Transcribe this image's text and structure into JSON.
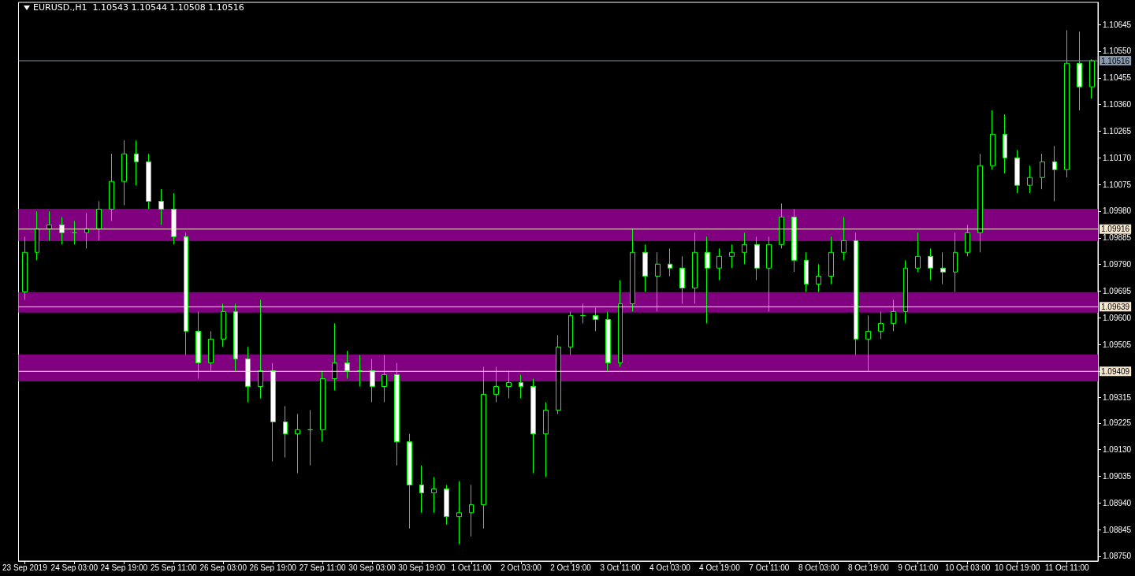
{
  "chart_data": {
    "type": "candlestick",
    "title": "EURUSD.,H1  1.10543 1.10544 1.10508 1.10516",
    "categories": [
      "23 Sep 2019",
      null,
      null,
      null,
      "24 Sep 03:00",
      null,
      null,
      null,
      "24 Sep 19:00",
      null,
      null,
      null,
      "25 Sep 11:00",
      null,
      null,
      null,
      "26 Sep 03:00",
      null,
      null,
      null,
      "26 Sep 19:00",
      null,
      null,
      null,
      "27 Sep 11:00",
      null,
      null,
      null,
      "30 Sep 03:00",
      null,
      null,
      null,
      "30 Sep 19:00",
      null,
      null,
      null,
      "1 Oct 11:00",
      null,
      null,
      null,
      "2 Oct 03:00",
      null,
      null,
      null,
      "2 Oct 19:00",
      null,
      null,
      null,
      "3 Oct 11:00",
      null,
      null,
      null,
      "4 Oct 03:00",
      null,
      null,
      null,
      "4 Oct 19:00",
      null,
      null,
      null,
      "7 Oct 11:00",
      null,
      null,
      null,
      "8 Oct 03:00",
      null,
      null,
      null,
      "8 Oct 19:00",
      null,
      null,
      null,
      "9 Oct 11:00",
      null,
      null,
      null,
      "10 Oct 03:00",
      null,
      null,
      null,
      "10 Oct 19:00",
      null,
      null,
      null,
      "11 Oct 11:00",
      null,
      null
    ],
    "bands": [
      {
        "axis": "y",
        "from": 1.09373,
        "to": 1.09469,
        "color": "#800080"
      },
      {
        "axis": "y",
        "from": 1.09618,
        "to": 1.09691,
        "color": "#800080"
      },
      {
        "axis": "y",
        "from": 1.09873,
        "to": 1.09988,
        "color": "#800080"
      }
    ],
    "series": [
      {
        "color": "#00ff00",
        "ohlc": [
          [
            1.09692,
            1.09889,
            1.09664,
            1.09833
          ],
          [
            1.09833,
            1.09979,
            1.09805,
            1.09917
          ],
          [
            1.09917,
            1.09979,
            1.09875,
            1.09931
          ],
          [
            1.09931,
            1.09959,
            1.09861,
            1.09903
          ],
          [
            1.09903,
            1.09945,
            1.09861,
            1.09903
          ],
          [
            1.09903,
            1.09973,
            1.09847,
            1.09917
          ],
          [
            1.09917,
            1.10015,
            1.09875,
            1.09987
          ],
          [
            1.09987,
            1.10184,
            1.09945,
            1.10086
          ],
          [
            1.10086,
            1.10232,
            1.10001,
            1.10184
          ],
          [
            1.10184,
            1.10232,
            1.10072,
            1.10156
          ],
          [
            1.10156,
            1.10184,
            1.09987,
            1.10015
          ],
          [
            1.10015,
            1.10058,
            1.09931,
            1.09987
          ],
          [
            1.09987,
            1.10044,
            1.09861,
            1.09889
          ],
          [
            1.09889,
            1.09903,
            1.09467,
            1.09552
          ],
          [
            1.09552,
            1.09622,
            1.09383,
            1.09439
          ],
          [
            1.09439,
            1.09552,
            1.09411,
            1.09524
          ],
          [
            1.09524,
            1.0965,
            1.09496,
            1.09622
          ],
          [
            1.09622,
            1.0965,
            1.09411,
            1.09453
          ],
          [
            1.09453,
            1.09496,
            1.09299,
            1.09355
          ],
          [
            1.09355,
            1.09664,
            1.09313,
            1.09411
          ],
          [
            1.09411,
            1.09439,
            1.09088,
            1.09229
          ],
          [
            1.09229,
            1.09285,
            1.09102,
            1.09186
          ],
          [
            1.09186,
            1.09257,
            1.09046,
            1.09201
          ],
          [
            1.09201,
            1.09271,
            1.09074,
            1.09201
          ],
          [
            1.09201,
            1.09411,
            1.09158,
            1.09383
          ],
          [
            1.09383,
            1.0958,
            1.09341,
            1.09439
          ],
          [
            1.09439,
            1.09482,
            1.09383,
            1.09411
          ],
          [
            1.09411,
            1.09467,
            1.09355,
            1.09411
          ],
          [
            1.09411,
            1.09453,
            1.09299,
            1.09355
          ],
          [
            1.09355,
            1.09467,
            1.09299,
            1.09397
          ],
          [
            1.09397,
            1.09439,
            1.09074,
            1.09158
          ],
          [
            1.09158,
            1.09186,
            1.08849,
            1.09004
          ],
          [
            1.09004,
            1.09074,
            1.08905,
            1.08976
          ],
          [
            1.08976,
            1.09032,
            1.08905,
            1.0899
          ],
          [
            1.0899,
            1.09004,
            1.08863,
            1.08891
          ],
          [
            1.08891,
            1.09018,
            1.08793,
            1.08905
          ],
          [
            1.08905,
            1.09004,
            1.08821,
            1.08934
          ],
          [
            1.08934,
            1.09425,
            1.08849,
            1.09327
          ],
          [
            1.09327,
            1.09425,
            1.09299,
            1.09355
          ],
          [
            1.09355,
            1.09411,
            1.09313,
            1.09369
          ],
          [
            1.09369,
            1.09397,
            1.09313,
            1.09355
          ],
          [
            1.09355,
            1.09383,
            1.09046,
            1.09186
          ],
          [
            1.09186,
            1.09299,
            1.09032,
            1.09271
          ],
          [
            1.09271,
            1.09538,
            1.09257,
            1.09496
          ],
          [
            1.09496,
            1.09622,
            1.09467,
            1.09608
          ],
          [
            1.09608,
            1.0965,
            1.0958,
            1.09608
          ],
          [
            1.09608,
            1.09636,
            1.09552,
            1.09594
          ],
          [
            1.09594,
            1.09622,
            1.09411,
            1.09439
          ],
          [
            1.09439,
            1.09734,
            1.09425,
            1.0965
          ],
          [
            1.0965,
            1.09917,
            1.09622,
            1.09833
          ],
          [
            1.09833,
            1.09861,
            1.09692,
            1.09748
          ],
          [
            1.09748,
            1.09833,
            1.09622,
            1.09791
          ],
          [
            1.09791,
            1.09847,
            1.09748,
            1.09777
          ],
          [
            1.09777,
            1.09819,
            1.0965,
            1.09706
          ],
          [
            1.09706,
            1.09903,
            1.0965,
            1.09833
          ],
          [
            1.09833,
            1.09889,
            1.0958,
            1.09777
          ],
          [
            1.09777,
            1.09847,
            1.09734,
            1.09819
          ],
          [
            1.09819,
            1.09861,
            1.09777,
            1.09833
          ],
          [
            1.09833,
            1.09903,
            1.09791,
            1.09861
          ],
          [
            1.09861,
            1.09889,
            1.09734,
            1.09777
          ],
          [
            1.09777,
            1.09889,
            1.09622,
            1.09861
          ],
          [
            1.09861,
            1.10007,
            1.09847,
            1.09959
          ],
          [
            1.09959,
            1.09987,
            1.09763,
            1.09805
          ],
          [
            1.09805,
            1.09833,
            1.09692,
            1.0972
          ],
          [
            1.0972,
            1.09791,
            1.09692,
            1.09748
          ],
          [
            1.09748,
            1.09889,
            1.0972,
            1.09833
          ],
          [
            1.09833,
            1.09959,
            1.09805,
            1.09875
          ],
          [
            1.09875,
            1.09903,
            1.09467,
            1.09524
          ],
          [
            1.09524,
            1.09608,
            1.09411,
            1.09552
          ],
          [
            1.09552,
            1.09622,
            1.09524,
            1.0958
          ],
          [
            1.0958,
            1.09664,
            1.09552,
            1.09622
          ],
          [
            1.09622,
            1.09805,
            1.0958,
            1.09777
          ],
          [
            1.09777,
            1.09903,
            1.09763,
            1.09819
          ],
          [
            1.09819,
            1.09847,
            1.09734,
            1.09777
          ],
          [
            1.09777,
            1.09833,
            1.0972,
            1.09763
          ],
          [
            1.09763,
            1.09903,
            1.09692,
            1.09833
          ],
          [
            1.09833,
            1.09931,
            1.09819,
            1.09903
          ],
          [
            1.09903,
            1.10184,
            1.09833,
            1.10142
          ],
          [
            1.10142,
            1.10339,
            1.10128,
            1.10254
          ],
          [
            1.10254,
            1.10325,
            1.10114,
            1.1017
          ],
          [
            1.1017,
            1.10198,
            1.10044,
            1.10072
          ],
          [
            1.10072,
            1.10142,
            1.10044,
            1.101
          ],
          [
            1.101,
            1.10184,
            1.10058,
            1.10156
          ],
          [
            1.10156,
            1.10212,
            1.10015,
            1.10128
          ],
          [
            1.10128,
            1.10625,
            1.101,
            1.10507
          ],
          [
            1.10507,
            1.1062,
            1.10339,
            1.10423
          ],
          [
            1.10423,
            1.10521,
            1.10381,
            1.10516
          ]
        ]
      }
    ],
    "ylim": [
      1.08733,
      1.10724
    ],
    "yticks": [
      {
        "value": 1.0875,
        "label": "1.08750"
      },
      1.08845,
      {
        "value": 1.0894,
        "label": "1.08940"
      },
      1.09035,
      {
        "value": 1.0913,
        "label": "1.09130"
      },
      1.09225,
      1.09315,
      {
        "value": 1.0941,
        "label": null
      },
      1.09505,
      {
        "value": 1.096,
        "label": "1.09600"
      },
      1.09695,
      {
        "value": 1.0979,
        "label": "1.09790"
      },
      1.09885,
      {
        "value": 1.0998,
        "label": "1.09980"
      },
      1.10075,
      {
        "value": 1.1017,
        "label": "1.10170"
      },
      1.10265,
      {
        "value": 1.1036,
        "label": "1.10360"
      },
      1.10455,
      {
        "value": 1.1055,
        "label": "1.10550"
      },
      1.10645
    ],
    "ref_lines": [
      {
        "axis": "y",
        "value": 1.10516,
        "label": "1.10516",
        "color": "#8a9bb0"
      },
      {
        "axis": "y",
        "value": 1.09916,
        "label": "1.09916",
        "color": "#f5e6cf"
      },
      {
        "axis": "y",
        "value": 1.09639,
        "label": "1.09639",
        "color": "#f5e6cf"
      },
      {
        "axis": "y",
        "value": 1.09409,
        "label": "1.09409",
        "color": "#f5e6cf"
      }
    ],
    "grid": false
  }
}
